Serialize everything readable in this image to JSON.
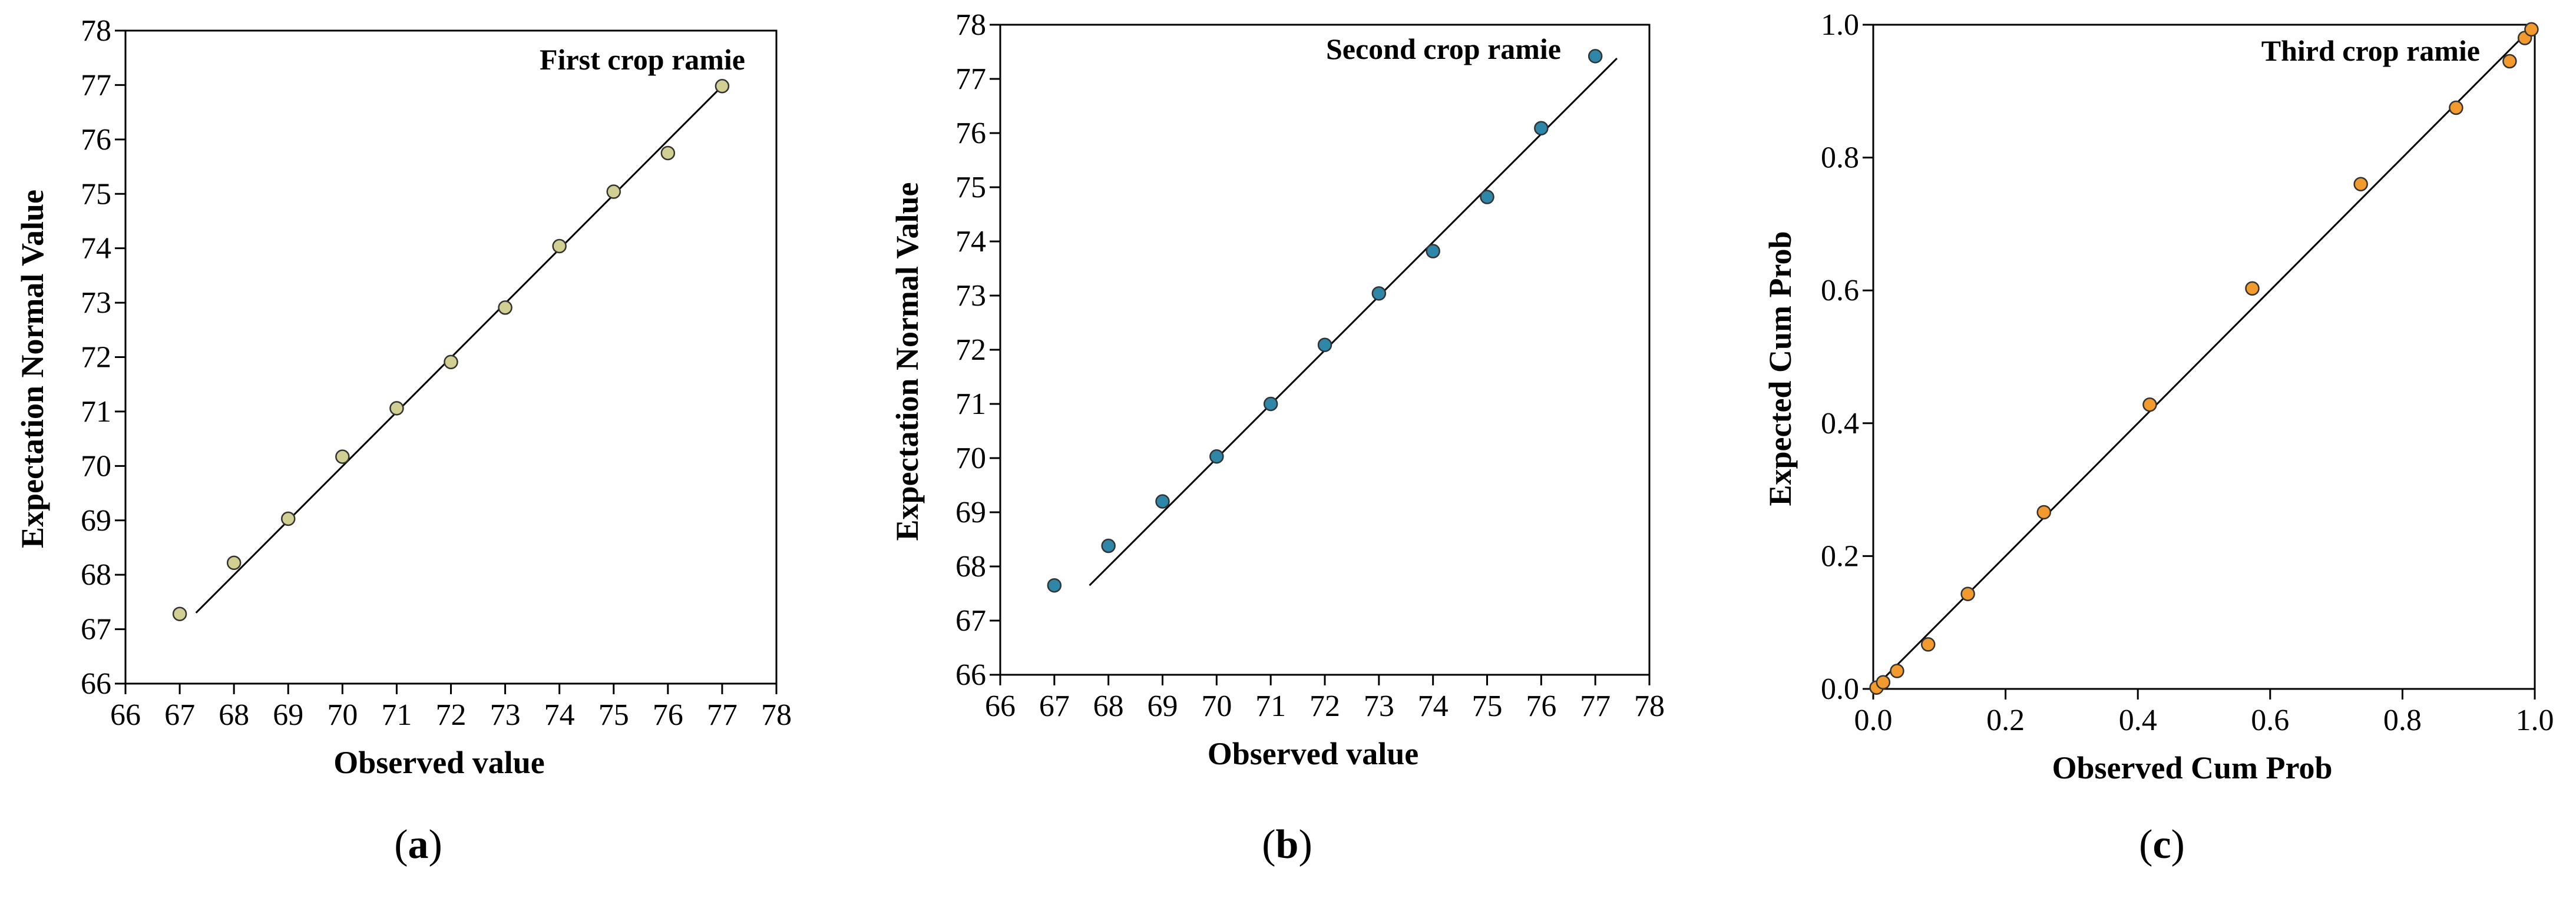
{
  "chart_data": [
    {
      "type": "scatter",
      "title": "First crop ramie",
      "xlabel": "Observed value",
      "ylabel": "Expectation Normal Value",
      "xlim": [
        66,
        78
      ],
      "ylim": [
        66,
        78
      ],
      "xticks": [
        "66",
        "67",
        "68",
        "69",
        "70",
        "71",
        "72",
        "73",
        "74",
        "75",
        "76",
        "77",
        "78"
      ],
      "yticks": [
        "66",
        "67",
        "68",
        "69",
        "70",
        "71",
        "72",
        "73",
        "74",
        "75",
        "76",
        "77",
        "78"
      ],
      "x": [
        67,
        68,
        69,
        70,
        71,
        72,
        73,
        74,
        75,
        76,
        77
      ],
      "y": [
        67.28,
        68.22,
        69.03,
        70.17,
        71.06,
        71.91,
        72.91,
        74.04,
        75.04,
        75.75,
        76.98
      ],
      "reference_line": {
        "x": [
          67.3,
          77
        ],
        "y": [
          67.3,
          76.98
        ]
      },
      "grid": false,
      "marker_color": "#d2cf92",
      "caption_letter": "a"
    },
    {
      "type": "scatter",
      "title": "Second crop ramie",
      "xlabel": "Observed value",
      "ylabel": "Expectation Normal Value",
      "xlim": [
        66,
        78
      ],
      "ylim": [
        66,
        78
      ],
      "xticks": [
        "66",
        "67",
        "68",
        "69",
        "70",
        "71",
        "72",
        "73",
        "74",
        "75",
        "76",
        "77",
        "78"
      ],
      "yticks": [
        "66",
        "67",
        "68",
        "69",
        "70",
        "71",
        "72",
        "73",
        "74",
        "75",
        "76",
        "77",
        "78"
      ],
      "x": [
        67,
        68,
        69,
        70,
        71,
        72,
        73,
        74,
        75,
        76,
        77
      ],
      "y": [
        67.65,
        68.38,
        69.2,
        70.03,
        71.0,
        72.09,
        73.04,
        73.82,
        74.82,
        76.09,
        77.42
      ],
      "reference_line": {
        "x": [
          67.65,
          77.4
        ],
        "y": [
          67.65,
          77.38
        ]
      },
      "grid": false,
      "marker_color": "#2e87a8",
      "caption_letter": "b"
    },
    {
      "type": "scatter",
      "title": "Third crop ramie",
      "xlabel": "Observed Cum Prob",
      "ylabel": "Expected Cum Prob",
      "xlim": [
        0,
        1
      ],
      "ylim": [
        0,
        1
      ],
      "xticks": [
        "0.0",
        "0.2",
        "0.4",
        "0.6",
        "0.8",
        "1.0"
      ],
      "yticks": [
        "0.0",
        "0.2",
        "0.4",
        "0.6",
        "0.8",
        "1.0"
      ],
      "x": [
        0.005,
        0.015,
        0.036,
        0.083,
        0.143,
        0.258,
        0.418,
        0.573,
        0.737,
        0.881,
        0.962,
        0.985,
        0.995
      ],
      "y": [
        0.002,
        0.01,
        0.027,
        0.067,
        0.143,
        0.266,
        0.428,
        0.603,
        0.76,
        0.875,
        0.945,
        0.98,
        0.993
      ],
      "reference_line": {
        "x": [
          0,
          1
        ],
        "y": [
          0,
          1
        ]
      },
      "grid": false,
      "marker_color": "#f39a2e",
      "caption_letter": "c"
    }
  ]
}
